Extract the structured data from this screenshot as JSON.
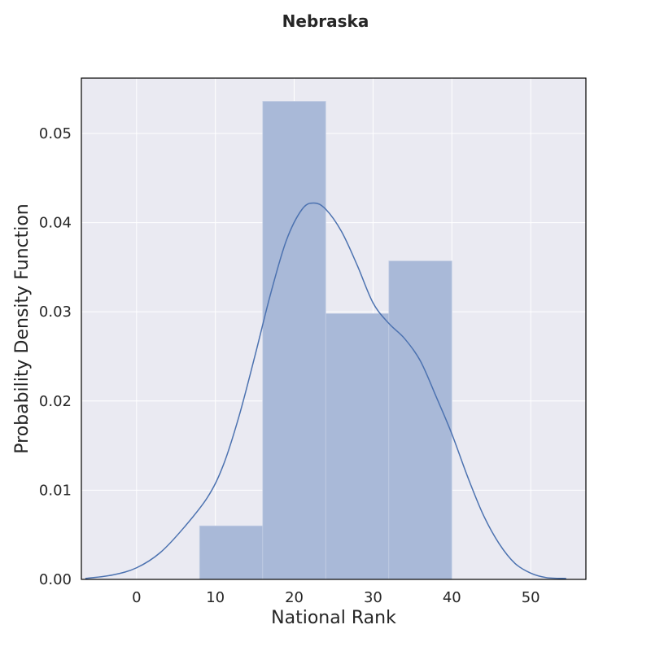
{
  "chart_data": {
    "type": "bar",
    "title": "Nebraska",
    "xlabel": "National Rank",
    "ylabel": "Probability Density Function",
    "xlim": [
      -7,
      57
    ],
    "ylim": [
      0,
      0.0562
    ],
    "x_ticks": [
      0,
      10,
      20,
      30,
      40,
      50
    ],
    "y_ticks": [
      0.0,
      0.01,
      0.02,
      0.03,
      0.04,
      0.05
    ],
    "y_tick_labels": [
      "0.00",
      "0.01",
      "0.02",
      "0.03",
      "0.04",
      "0.05"
    ],
    "x_tick_labels": [
      "0",
      "10",
      "20",
      "30",
      "40",
      "50"
    ],
    "grid": true,
    "colors": {
      "background": "#eaeaf2",
      "bar": "#a9b9d8",
      "kde_line": "#4c72b0",
      "grid": "#ffffff",
      "frame": "#000000"
    },
    "histogram": {
      "bins": [
        {
          "x0": 8,
          "x1": 16,
          "density": 0.006
        },
        {
          "x0": 16,
          "x1": 24,
          "density": 0.0536
        },
        {
          "x0": 24,
          "x1": 32,
          "density": 0.0298
        },
        {
          "x0": 32,
          "x1": 40,
          "density": 0.0357
        }
      ]
    },
    "kde": {
      "x": [
        -6.5,
        -3,
        0,
        3,
        6,
        9,
        11,
        13,
        15,
        17,
        19,
        21,
        22.5,
        24,
        26,
        28,
        30,
        32,
        34,
        36,
        38,
        40,
        42,
        44,
        46,
        48,
        50,
        52,
        54.5
      ],
      "y": [
        0.0001,
        0.0005,
        0.0013,
        0.003,
        0.0058,
        0.0092,
        0.0128,
        0.0183,
        0.025,
        0.032,
        0.038,
        0.0415,
        0.0422,
        0.0415,
        0.039,
        0.0352,
        0.031,
        0.0287,
        0.027,
        0.0245,
        0.0205,
        0.0163,
        0.0115,
        0.0072,
        0.004,
        0.0018,
        0.0007,
        0.0002,
        0.0001
      ]
    }
  }
}
